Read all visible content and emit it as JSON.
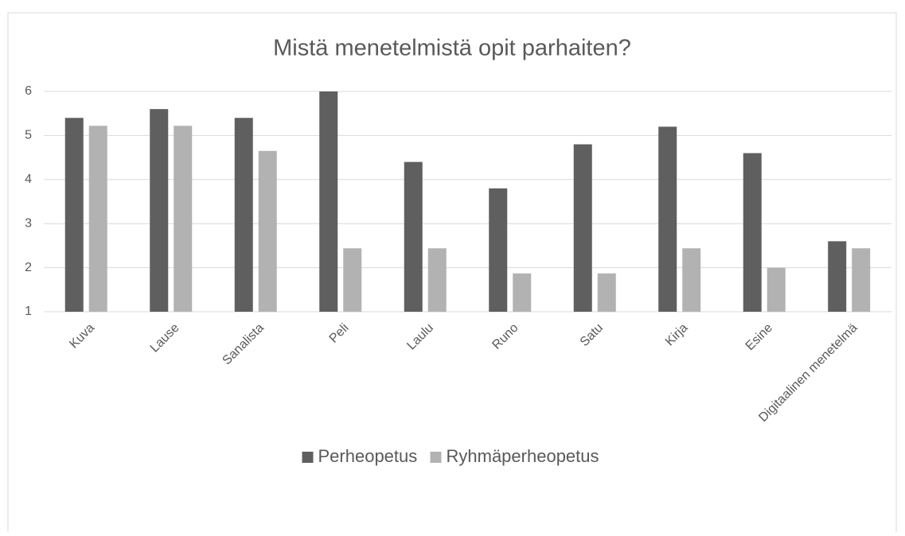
{
  "chart_data": {
    "type": "bar",
    "title": "Mistä menetelmistä opit parhaiten?",
    "categories": [
      "Kuva",
      "Lause",
      "Sanalista",
      "Peli",
      "Laulu",
      "Runo",
      "Satu",
      "Kirja",
      "Esine",
      "Digitaalinen menetelmä"
    ],
    "series": [
      {
        "name": "Perheopetus",
        "color": "#5f5f5f",
        "values": [
          5.4,
          5.6,
          5.4,
          6.0,
          4.4,
          3.8,
          4.8,
          5.2,
          4.6,
          2.6
        ]
      },
      {
        "name": "Ryhmäperheopetus",
        "color": "#b2b2b2",
        "values": [
          5.22,
          5.22,
          4.65,
          2.44,
          2.44,
          1.87,
          1.87,
          2.44,
          2.0,
          2.44
        ]
      }
    ],
    "ylim": [
      1,
      6
    ],
    "yticks": [
      1,
      2,
      3,
      4,
      5,
      6
    ],
    "grid": true,
    "legend": "bottom"
  }
}
